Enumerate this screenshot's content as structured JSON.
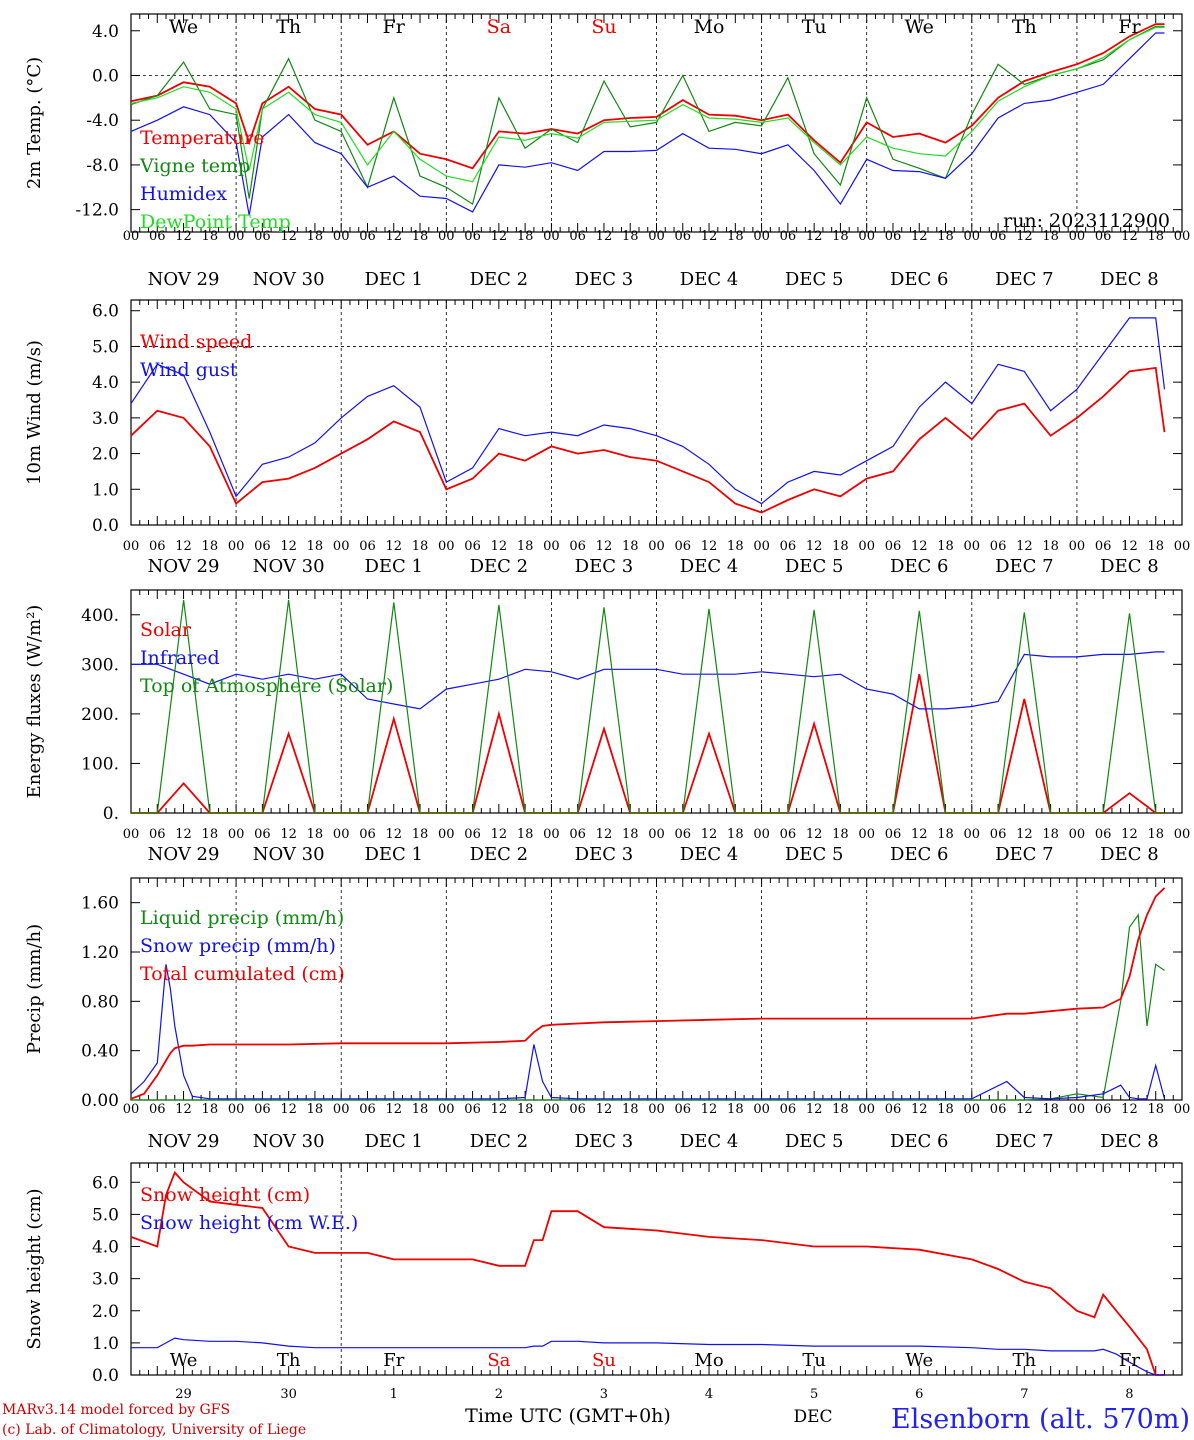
{
  "station": "Elsenborn (alt. 570m)",
  "credits": [
    "MARv3.14 model forced by GFS",
    "(c) Lab. of Climatology, University of Liege"
  ],
  "run_label": "run: 2023112900",
  "x_axis_title": "Time UTC (GMT+0h)",
  "month_label": "DEC",
  "hour_ticks": [
    "00",
    "06",
    "12",
    "18"
  ],
  "hour_end_tick": "00",
  "days": [
    {
      "abbr": "We",
      "date": "NOV 29",
      "short": "29",
      "weekend": false
    },
    {
      "abbr": "Th",
      "date": "NOV 30",
      "short": "30",
      "weekend": false
    },
    {
      "abbr": "Fr",
      "date": "DEC  1",
      "short": "1",
      "weekend": false
    },
    {
      "abbr": "Sa",
      "date": "DEC  2",
      "short": "2",
      "weekend": true
    },
    {
      "abbr": "Su",
      "date": "DEC  3",
      "short": "3",
      "weekend": true
    },
    {
      "abbr": "Mo",
      "date": "DEC  4",
      "short": "4",
      "weekend": false
    },
    {
      "abbr": "Tu",
      "date": "DEC  5",
      "short": "5",
      "weekend": false
    },
    {
      "abbr": "We",
      "date": "DEC  6",
      "short": "6",
      "weekend": false
    },
    {
      "abbr": "Th",
      "date": "DEC  7",
      "short": "7",
      "weekend": false
    },
    {
      "abbr": "Fr",
      "date": "DEC  8",
      "short": "8",
      "weekend": false
    }
  ],
  "colors": {
    "red": "#ee0000",
    "green": "#118811",
    "blue": "#1111ee",
    "light_green": "#22dd22",
    "weekend": "#ee0000",
    "station": "#2222ee",
    "credits": "#cc0000"
  },
  "chart_data": [
    {
      "type": "line",
      "ylabel": "2m Temp. (°C)",
      "ylim": [
        -14,
        5.5
      ],
      "yticks": [
        4,
        0,
        -4,
        -8,
        -12
      ],
      "ytick_labels": [
        "4.0",
        "0.0",
        "-4.0",
        "-8.0",
        "-12.0"
      ],
      "dashed_y": 0,
      "x_hours_from_nov29_00": [
        0,
        6,
        12,
        18,
        24,
        27,
        30,
        36,
        42,
        48,
        54,
        60,
        66,
        72,
        78,
        84,
        90,
        96,
        102,
        108,
        114,
        120,
        126,
        132,
        138,
        144,
        150,
        156,
        162,
        168,
        174,
        180,
        186,
        192,
        198,
        204,
        210,
        216,
        222,
        228,
        234,
        236
      ],
      "series": [
        {
          "name": "Temperature",
          "color": "red",
          "values": [
            -2.3,
            -1.8,
            -0.6,
            -1.0,
            -2.5,
            -6.0,
            -2.5,
            -1.0,
            -3.0,
            -3.5,
            -6.2,
            -5.0,
            -7.0,
            -7.5,
            -8.3,
            -5.0,
            -5.2,
            -4.8,
            -5.2,
            -4.0,
            -3.8,
            -3.7,
            -2.2,
            -3.5,
            -3.6,
            -4.0,
            -3.5,
            -5.8,
            -7.8,
            -4.2,
            -5.5,
            -5.2,
            -6.0,
            -4.5,
            -2.0,
            -0.5,
            0.3,
            1.0,
            2.0,
            3.5,
            4.6,
            4.6
          ]
        },
        {
          "name": "Vigne temp",
          "color": "green",
          "values": [
            -2.6,
            -1.8,
            1.2,
            -3.0,
            -3.5,
            -11.0,
            -3.0,
            1.5,
            -4.0,
            -5.0,
            -10.0,
            -2.0,
            -9.0,
            -10.0,
            -11.5,
            -2.0,
            -6.5,
            -4.8,
            -6.0,
            -0.5,
            -4.6,
            -4.2,
            0.0,
            -5.0,
            -4.2,
            -4.5,
            -0.2,
            -7.0,
            -9.8,
            -2.0,
            -7.5,
            -8.3,
            -9.2,
            -3.5,
            1.0,
            -0.8,
            0.0,
            0.6,
            1.4,
            3.2,
            4.4,
            4.4
          ]
        },
        {
          "name": "Humidex",
          "color": "blue",
          "values": [
            -5.0,
            -4.0,
            -2.8,
            -3.5,
            -6.0,
            -12.5,
            -5.5,
            -3.5,
            -6.0,
            -7.0,
            -10.0,
            -9.0,
            -10.8,
            -11.0,
            -12.2,
            -8.0,
            -8.2,
            -7.8,
            -8.5,
            -6.8,
            -6.8,
            -6.7,
            -5.2,
            -6.5,
            -6.6,
            -7.0,
            -6.2,
            -8.5,
            -11.5,
            -7.5,
            -8.5,
            -8.6,
            -9.2,
            -7.0,
            -3.8,
            -2.5,
            -2.2,
            -1.5,
            -0.8,
            1.5,
            3.8,
            3.8
          ]
        },
        {
          "name": "DewPoint Temp",
          "color": "light_green",
          "values": [
            -2.5,
            -2.0,
            -1.0,
            -1.5,
            -3.0,
            -8.5,
            -3.0,
            -1.5,
            -3.5,
            -4.2,
            -8.0,
            -5.0,
            -7.5,
            -9.0,
            -9.5,
            -5.5,
            -5.8,
            -5.2,
            -5.6,
            -4.2,
            -4.1,
            -4.0,
            -2.6,
            -3.8,
            -3.9,
            -4.2,
            -3.8,
            -6.0,
            -8.0,
            -5.5,
            -6.5,
            -7.0,
            -7.2,
            -5.0,
            -2.3,
            -1.0,
            0.0,
            0.6,
            1.6,
            3.2,
            4.3,
            4.3
          ]
        }
      ]
    },
    {
      "type": "line",
      "ylabel": "10m Wind (m/s)",
      "ylim": [
        0,
        6.3
      ],
      "yticks": [
        0,
        1,
        2,
        3,
        4,
        5,
        6
      ],
      "ytick_labels": [
        "0.0",
        "1.0",
        "2.0",
        "3.0",
        "4.0",
        "5.0",
        "6.0"
      ],
      "dashed_y": 5,
      "x_hours_from_nov29_00": [
        0,
        6,
        12,
        18,
        24,
        30,
        36,
        42,
        48,
        54,
        60,
        66,
        72,
        78,
        84,
        90,
        96,
        102,
        108,
        114,
        120,
        126,
        132,
        138,
        144,
        150,
        156,
        162,
        168,
        174,
        180,
        186,
        192,
        198,
        204,
        210,
        216,
        222,
        228,
        234,
        236
      ],
      "series": [
        {
          "name": "Wind speed",
          "color": "red",
          "values": [
            2.5,
            3.2,
            3.0,
            2.2,
            0.6,
            1.2,
            1.3,
            1.6,
            2.0,
            2.4,
            2.9,
            2.6,
            1.0,
            1.3,
            2.0,
            1.8,
            2.2,
            2.0,
            2.1,
            1.9,
            1.8,
            1.5,
            1.2,
            0.6,
            0.35,
            0.7,
            1.0,
            0.8,
            1.3,
            1.5,
            2.4,
            3.0,
            2.4,
            3.2,
            3.4,
            2.5,
            3.0,
            3.6,
            4.3,
            4.4,
            2.6
          ]
        },
        {
          "name": "Wind gust",
          "color": "blue",
          "values": [
            3.4,
            4.5,
            4.2,
            2.6,
            0.8,
            1.7,
            1.9,
            2.3,
            3.0,
            3.6,
            3.9,
            3.3,
            1.2,
            1.6,
            2.7,
            2.5,
            2.6,
            2.5,
            2.8,
            2.7,
            2.5,
            2.2,
            1.7,
            1.0,
            0.6,
            1.2,
            1.5,
            1.4,
            1.8,
            2.2,
            3.3,
            4.0,
            3.4,
            4.5,
            4.3,
            3.2,
            3.8,
            4.8,
            5.8,
            5.8,
            3.8
          ]
        }
      ]
    },
    {
      "type": "line",
      "ylabel": "Energy fluxes (W/m²)",
      "ylim": [
        0,
        450
      ],
      "yticks": [
        0,
        100,
        200,
        300,
        400
      ],
      "ytick_labels": [
        "0.",
        "100.",
        "200.",
        "300.",
        "400."
      ],
      "dashed_y": null,
      "x_hours_from_nov29_00": [
        0,
        6,
        12,
        18,
        24,
        30,
        36,
        42,
        48,
        54,
        60,
        66,
        72,
        78,
        84,
        90,
        96,
        102,
        108,
        114,
        120,
        126,
        132,
        138,
        144,
        150,
        156,
        162,
        168,
        174,
        180,
        186,
        192,
        198,
        204,
        210,
        216,
        222,
        228,
        234,
        236
      ],
      "series": [
        {
          "name": "Solar",
          "color": "red",
          "values": [
            0,
            0,
            60,
            0,
            0,
            0,
            160,
            0,
            0,
            0,
            190,
            0,
            0,
            0,
            200,
            0,
            0,
            0,
            170,
            0,
            0,
            0,
            160,
            0,
            0,
            0,
            180,
            0,
            0,
            0,
            280,
            0,
            0,
            0,
            230,
            0,
            0,
            0,
            40,
            0,
            0
          ]
        },
        {
          "name": "Infrared",
          "color": "blue",
          "values": [
            300,
            300,
            280,
            260,
            280,
            270,
            280,
            270,
            280,
            230,
            220,
            210,
            250,
            260,
            270,
            290,
            285,
            270,
            290,
            290,
            290,
            280,
            280,
            280,
            285,
            280,
            275,
            280,
            250,
            240,
            210,
            210,
            215,
            225,
            320,
            315,
            315,
            320,
            320,
            325,
            325
          ]
        },
        {
          "name": "Top of Atmosphere (Solar)",
          "color": "green",
          "values": [
            0,
            0,
            430,
            0,
            0,
            0,
            430,
            0,
            0,
            0,
            425,
            0,
            0,
            0,
            420,
            0,
            0,
            0,
            415,
            0,
            0,
            0,
            412,
            0,
            0,
            0,
            410,
            0,
            0,
            0,
            408,
            0,
            0,
            0,
            405,
            0,
            0,
            0,
            403,
            0,
            0
          ]
        }
      ]
    },
    {
      "type": "line",
      "ylabel": "Precip (mm/h)",
      "ylim": [
        0,
        1.8
      ],
      "yticks": [
        0,
        0.4,
        0.8,
        1.2,
        1.6
      ],
      "ytick_labels": [
        "0.00",
        "0.40",
        "0.80",
        "1.20",
        "1.60"
      ],
      "dashed_y": null,
      "x_hours_from_nov29_00": [
        0,
        3,
        6,
        8,
        9,
        10,
        12,
        14,
        18,
        24,
        36,
        48,
        60,
        72,
        84,
        90,
        92,
        94,
        96,
        102,
        108,
        120,
        132,
        144,
        168,
        192,
        200,
        204,
        210,
        216,
        222,
        226,
        228,
        230,
        232,
        234,
        236
      ],
      "series": [
        {
          "name": "Liquid precip (mm/h)",
          "color": "green",
          "values": [
            0,
            0,
            0,
            0,
            0,
            0,
            0,
            0,
            0,
            0,
            0,
            0,
            0,
            0,
            0,
            0,
            0,
            0,
            0,
            0,
            0,
            0,
            0,
            0,
            0,
            0,
            0,
            0,
            0.01,
            0.05,
            0.02,
            0.8,
            1.4,
            1.5,
            0.6,
            1.1,
            1.05
          ]
        },
        {
          "name": "Snow precip (mm/h)",
          "color": "blue",
          "values": [
            0.05,
            0.15,
            0.3,
            1.1,
            0.9,
            0.6,
            0.2,
            0.03,
            0.01,
            0.01,
            0.01,
            0.01,
            0.01,
            0.01,
            0.01,
            0.02,
            0.45,
            0.15,
            0.02,
            0.01,
            0.01,
            0.01,
            0.01,
            0.01,
            0.01,
            0.01,
            0.15,
            0.02,
            0.01,
            0.02,
            0.05,
            0.12,
            0.02,
            0.01,
            0.01,
            0.28,
            0.01
          ]
        },
        {
          "name": "Total cumulated (cm)",
          "color": "red",
          "values": [
            0.01,
            0.05,
            0.2,
            0.32,
            0.38,
            0.42,
            0.44,
            0.44,
            0.45,
            0.45,
            0.45,
            0.46,
            0.46,
            0.46,
            0.47,
            0.48,
            0.55,
            0.6,
            0.61,
            0.62,
            0.63,
            0.64,
            0.65,
            0.66,
            0.66,
            0.66,
            0.7,
            0.7,
            0.72,
            0.74,
            0.75,
            0.82,
            1.0,
            1.3,
            1.5,
            1.65,
            1.72
          ]
        }
      ]
    },
    {
      "type": "line",
      "ylabel": "Snow height (cm)",
      "ylim": [
        0,
        6.6
      ],
      "yticks": [
        0,
        1,
        2,
        3,
        4,
        5,
        6
      ],
      "ytick_labels": [
        "0.0",
        "1.0",
        "2.0",
        "3.0",
        "4.0",
        "5.0",
        "6.0"
      ],
      "dashed_y": null,
      "x_hours_from_nov29_00": [
        0,
        6,
        8,
        10,
        12,
        18,
        24,
        30,
        36,
        42,
        48,
        54,
        60,
        66,
        72,
        78,
        84,
        90,
        92,
        94,
        96,
        102,
        108,
        120,
        132,
        144,
        156,
        168,
        180,
        192,
        198,
        204,
        210,
        216,
        220,
        222,
        225,
        228,
        232,
        234,
        236
      ],
      "series": [
        {
          "name": "Snow height (cm)",
          "color": "red",
          "values": [
            4.3,
            4.0,
            5.6,
            6.3,
            6.0,
            5.4,
            5.3,
            5.2,
            4.0,
            3.8,
            3.8,
            3.8,
            3.6,
            3.6,
            3.6,
            3.6,
            3.4,
            3.4,
            4.2,
            4.2,
            5.1,
            5.1,
            4.6,
            4.5,
            4.3,
            4.2,
            4.0,
            4.0,
            3.9,
            3.6,
            3.3,
            2.9,
            2.7,
            2.0,
            1.8,
            2.5,
            2.0,
            1.5,
            0.8,
            0,
            0
          ]
        },
        {
          "name": "Snow height (cm W.E.)",
          "color": "blue",
          "values": [
            0.85,
            0.85,
            1.0,
            1.15,
            1.1,
            1.05,
            1.05,
            1.0,
            0.9,
            0.85,
            0.85,
            0.85,
            0.85,
            0.85,
            0.85,
            0.85,
            0.85,
            0.85,
            0.9,
            0.9,
            1.05,
            1.05,
            1.0,
            1.0,
            0.95,
            0.95,
            0.9,
            0.9,
            0.9,
            0.85,
            0.8,
            0.8,
            0.75,
            0.75,
            0.75,
            0.8,
            0.65,
            0.4,
            0.1,
            0,
            0
          ]
        }
      ]
    }
  ]
}
